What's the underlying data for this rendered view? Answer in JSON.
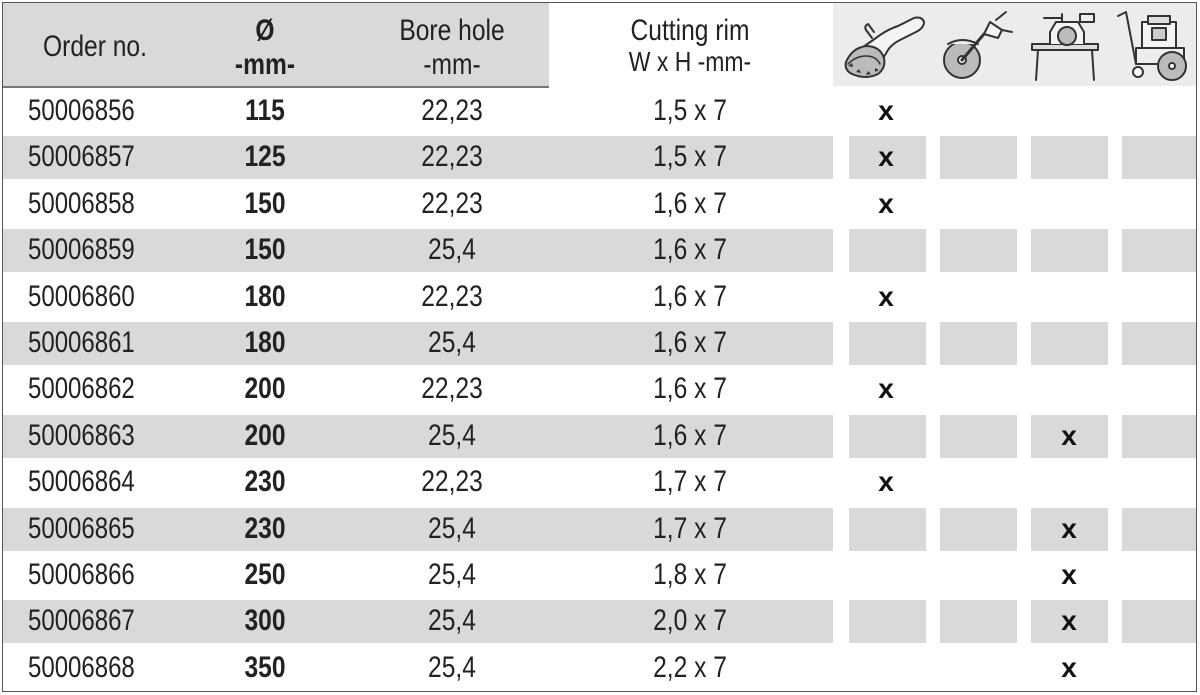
{
  "header": {
    "order_no": "Order no.",
    "diameter_symbol": "Ø",
    "diameter_unit": "-mm-",
    "bore_hole": "Bore hole",
    "bore_unit": "-mm-",
    "cutting_rim": "Cutting rim",
    "cutting_rim_unit": "W x H -mm-",
    "tool_icons": [
      "angle-grinder-icon",
      "cut-off-saw-icon",
      "table-saw-icon",
      "floor-saw-icon"
    ]
  },
  "colors": {
    "row_shade": "#d9d9d9",
    "header_shade": "#d9d9d9",
    "icon_header_shade": "#ececec",
    "text": "#222222"
  },
  "rows": [
    {
      "order": "50006856",
      "dia": "115",
      "bore": "22,23",
      "rim": "1,5 x 7",
      "marks": [
        "x",
        "",
        "",
        ""
      ]
    },
    {
      "order": "50006857",
      "dia": "125",
      "bore": "22,23",
      "rim": "1,5 x 7",
      "marks": [
        "x",
        "",
        "",
        ""
      ]
    },
    {
      "order": "50006858",
      "dia": "150",
      "bore": "22,23",
      "rim": "1,6 x 7",
      "marks": [
        "x",
        "",
        "",
        ""
      ]
    },
    {
      "order": "50006859",
      "dia": "150",
      "bore": "25,4",
      "rim": "1,6 x 7",
      "marks": [
        "",
        "",
        "",
        ""
      ]
    },
    {
      "order": "50006860",
      "dia": "180",
      "bore": "22,23",
      "rim": "1,6 x 7",
      "marks": [
        "x",
        "",
        "",
        ""
      ]
    },
    {
      "order": "50006861",
      "dia": "180",
      "bore": "25,4",
      "rim": "1,6 x 7",
      "marks": [
        "",
        "",
        "",
        ""
      ]
    },
    {
      "order": "50006862",
      "dia": "200",
      "bore": "22,23",
      "rim": "1,6 x 7",
      "marks": [
        "x",
        "",
        "",
        ""
      ]
    },
    {
      "order": "50006863",
      "dia": "200",
      "bore": "25,4",
      "rim": "1,6 x 7",
      "marks": [
        "",
        "",
        "x",
        ""
      ]
    },
    {
      "order": "50006864",
      "dia": "230",
      "bore": "22,23",
      "rim": "1,7 x 7",
      "marks": [
        "x",
        "",
        "",
        ""
      ]
    },
    {
      "order": "50006865",
      "dia": "230",
      "bore": "25,4",
      "rim": "1,7 x 7",
      "marks": [
        "",
        "",
        "x",
        ""
      ]
    },
    {
      "order": "50006866",
      "dia": "250",
      "bore": "25,4",
      "rim": "1,8 x 7",
      "marks": [
        "",
        "",
        "x",
        ""
      ]
    },
    {
      "order": "50006867",
      "dia": "300",
      "bore": "25,4",
      "rim": "2,0 x 7",
      "marks": [
        "",
        "",
        "x",
        ""
      ]
    },
    {
      "order": "50006868",
      "dia": "350",
      "bore": "25,4",
      "rim": "2,2 x 7",
      "marks": [
        "",
        "",
        "x",
        ""
      ]
    }
  ]
}
